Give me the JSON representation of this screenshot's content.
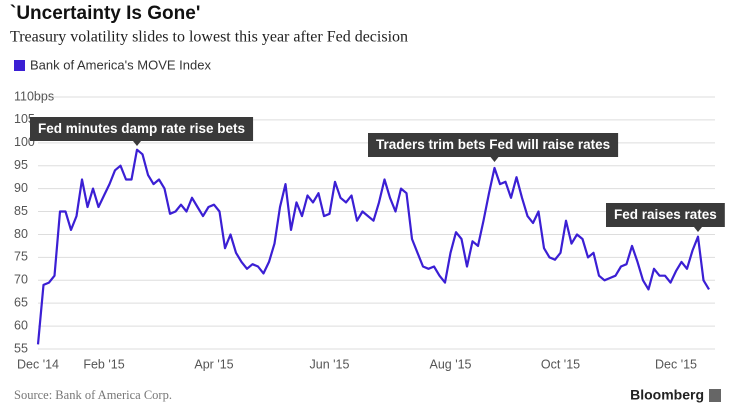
{
  "chart_data": {
    "type": "line",
    "title": "`Uncertainty Is Gone'",
    "subtitle": "Treasury volatility slides to lowest this year after Fed decision",
    "source": "Source: Bank of America Corp.",
    "brand": "Bloomberg",
    "categories": [
      "Dec '14",
      null,
      null,
      null,
      null,
      null,
      null,
      null,
      null,
      null,
      null,
      null,
      "Feb '15",
      null,
      null,
      null,
      null,
      null,
      null,
      null,
      null,
      null,
      null,
      null,
      null,
      null,
      null,
      null,
      null,
      null,
      null,
      null,
      "Apr '15",
      null,
      null,
      null,
      null,
      null,
      null,
      null,
      null,
      null,
      null,
      null,
      null,
      null,
      null,
      null,
      null,
      null,
      null,
      null,
      null,
      "Jun '15",
      null,
      null,
      null,
      null,
      null,
      null,
      null,
      null,
      null,
      null,
      null,
      null,
      null,
      null,
      null,
      null,
      null,
      null,
      null,
      null,
      null,
      "Aug '15",
      null,
      null,
      null,
      null,
      null,
      null,
      null,
      null,
      null,
      null,
      null,
      null,
      null,
      null,
      null,
      null,
      null,
      null,
      null,
      "Oct '15",
      null,
      null,
      null,
      null,
      null,
      null,
      null,
      null,
      null,
      null,
      null,
      null,
      null,
      null,
      null,
      null,
      null,
      null,
      null,
      null,
      "Dec '15",
      null,
      null,
      null,
      null,
      null,
      null
    ],
    "series": [
      {
        "name": "Bank of America's MOVE Index",
        "color": "#3b1fd4",
        "values": [
          56,
          69,
          69.5,
          71,
          85,
          85,
          81,
          84,
          92,
          86,
          90,
          86,
          88.5,
          91,
          94,
          95,
          92,
          92,
          98.5,
          97.5,
          93,
          91,
          92,
          90,
          84.5,
          85,
          86.5,
          85,
          88,
          86,
          84,
          86,
          86.5,
          85,
          77,
          80,
          76,
          74,
          72.5,
          73.5,
          73,
          71.5,
          74,
          78,
          86,
          91,
          81,
          87,
          84,
          88.5,
          87,
          89,
          84,
          84.5,
          91.5,
          88,
          87,
          88.5,
          83,
          85,
          84,
          83,
          87,
          92,
          88,
          85,
          90,
          89,
          79,
          76,
          73,
          72.5,
          73,
          71,
          69.5,
          76,
          80.5,
          79,
          73,
          78.5,
          77.5,
          83,
          89,
          94.5,
          91,
          91.5,
          88,
          92.5,
          88,
          84,
          82.5,
          85,
          77,
          75,
          74.5,
          76,
          83,
          78,
          80,
          79,
          75,
          76,
          71,
          70,
          70.5,
          71,
          73,
          73.5,
          77.5,
          74,
          70,
          68,
          72.5,
          71,
          71,
          69.5,
          72,
          74,
          72.5,
          76.5,
          79.5,
          70,
          68
        ]
      }
    ],
    "ylim": [
      55,
      110
    ],
    "yticks": [
      55,
      60,
      65,
      70,
      75,
      80,
      85,
      90,
      95,
      100,
      105,
      {
        "value": 110,
        "label": "110bps"
      }
    ],
    "grid": true,
    "annotations": [
      {
        "text": "Fed minutes damp rate rise bets"
      },
      {
        "text": "Traders trim bets Fed will raise rates"
      },
      {
        "text": "Fed raises rates"
      }
    ]
  }
}
